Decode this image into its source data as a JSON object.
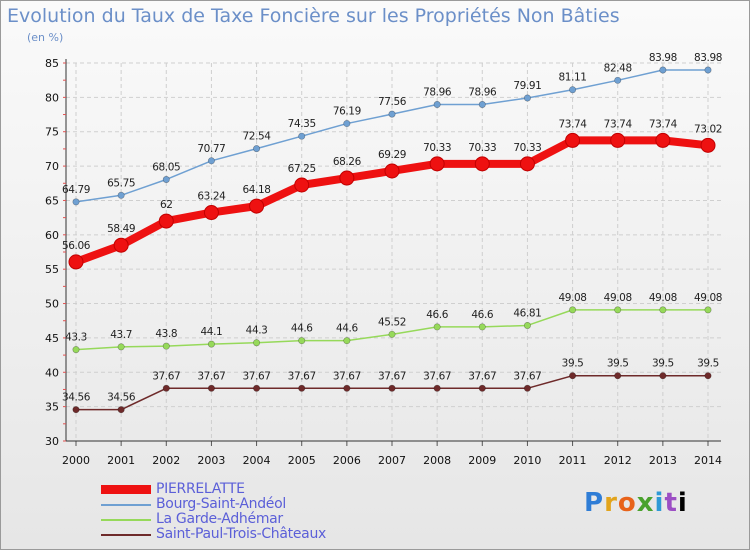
{
  "chart_data": {
    "type": "line",
    "title": "Evolution du Taux de Taxe Foncière sur les Propriétés Non Bâties",
    "unit_label": "(en %)",
    "x": [
      "2000",
      "2001",
      "2002",
      "2003",
      "2004",
      "2005",
      "2006",
      "2007",
      "2008",
      "2009",
      "2010",
      "2011",
      "2012",
      "2013",
      "2014"
    ],
    "ylim": [
      30,
      85
    ],
    "yticks": [
      30,
      35,
      40,
      45,
      50,
      55,
      60,
      65,
      70,
      75,
      80,
      85
    ],
    "grid": true,
    "series": [
      {
        "name": "PIERRELATTE",
        "color": "#ee1111",
        "emphasis": true,
        "values": [
          56.06,
          58.49,
          62,
          63.24,
          64.18,
          67.25,
          68.26,
          69.29,
          70.33,
          70.33,
          70.33,
          73.74,
          73.74,
          73.74,
          73.02
        ],
        "labels": [
          "56.06",
          "58.49",
          "62",
          "63.24",
          "64.18",
          "67.25",
          "68.26",
          "69.29",
          "70.33",
          "70.33",
          "70.33",
          "73.74",
          "73.74",
          "73.74",
          "73.02"
        ]
      },
      {
        "name": "Bourg-Saint-Andéol",
        "color": "#6fa0d2",
        "emphasis": false,
        "values": [
          64.79,
          65.75,
          68.05,
          70.77,
          72.54,
          74.35,
          76.19,
          77.56,
          78.96,
          78.96,
          79.91,
          81.11,
          82.48,
          83.98,
          83.98
        ],
        "labels": [
          "64.79",
          "65.75",
          "68.05",
          "70.77",
          "72.54",
          "74.35",
          "76.19",
          "77.56",
          "78.96",
          "78.96",
          "79.91",
          "81.11",
          "82.48",
          "83.98",
          "83.98"
        ]
      },
      {
        "name": "La Garde-Adhémar",
        "color": "#96d95a",
        "emphasis": false,
        "values": [
          43.3,
          43.7,
          43.8,
          44.1,
          44.3,
          44.6,
          44.6,
          45.52,
          46.6,
          46.6,
          46.81,
          49.08,
          49.08,
          49.08,
          49.08
        ],
        "labels": [
          "43.3",
          "43.7",
          "43.8",
          "44.1",
          "44.3",
          "44.6",
          "44.6",
          "45.52",
          "46.6",
          "46.6",
          "46.81",
          "49.08",
          "49.08",
          "49.08",
          "49.08"
        ]
      },
      {
        "name": "Saint-Paul-Trois-Châteaux",
        "color": "#6e2a2a",
        "emphasis": false,
        "values": [
          34.56,
          34.56,
          37.67,
          37.67,
          37.67,
          37.67,
          37.67,
          37.67,
          37.67,
          37.67,
          37.67,
          39.5,
          39.5,
          39.5,
          39.5
        ],
        "labels": [
          "34.56",
          "34.56",
          "37.67",
          "37.67",
          "37.67",
          "37.67",
          "37.67",
          "37.67",
          "37.67",
          "37.67",
          "37.67",
          "39.5",
          "39.5",
          "39.5",
          "39.5"
        ]
      }
    ]
  },
  "brand": {
    "letters": [
      "P",
      "r",
      "o",
      "x",
      "i",
      "t",
      "i"
    ]
  }
}
